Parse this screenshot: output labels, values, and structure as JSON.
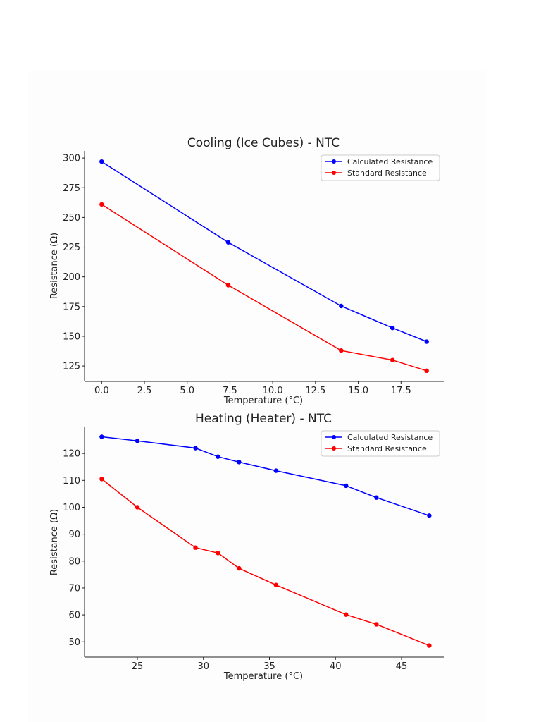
{
  "chart_data": [
    {
      "type": "line",
      "title": "Cooling (Ice Cubes) - NTC",
      "xlabel": "Temperature (°C)",
      "ylabel": "Resistance (Ω)",
      "xlim": [
        -1,
        20
      ],
      "ylim": [
        112,
        306
      ],
      "xticks": [
        0.0,
        2.5,
        5.0,
        7.5,
        10.0,
        12.5,
        15.0,
        17.5
      ],
      "xtick_labels": [
        "0.0",
        "2.5",
        "5.0",
        "7.5",
        "10.0",
        "12.5",
        "15.0",
        "17.5"
      ],
      "yticks": [
        125,
        150,
        175,
        200,
        225,
        250,
        275,
        300
      ],
      "ytick_labels": [
        "125",
        "150",
        "175",
        "200",
        "225",
        "250",
        "275",
        "300"
      ],
      "legend_position": "top-right",
      "grid": false,
      "x": [
        0.0,
        7.4,
        14.0,
        17.0,
        19.0
      ],
      "series": [
        {
          "name": "Calculated Resistance",
          "color": "#0000ff",
          "values": [
            297,
            229,
            175.5,
            157,
            145.5
          ]
        },
        {
          "name": "Standard Resistance",
          "color": "#ff0000",
          "values": [
            261,
            193,
            138,
            130,
            121
          ]
        }
      ]
    },
    {
      "type": "line",
      "title": "Heating (Heater) - NTC",
      "xlabel": "Temperature (°C)",
      "ylabel": "Resistance (Ω)",
      "xlim": [
        21,
        48.2
      ],
      "ylim": [
        44.3,
        130
      ],
      "xticks": [
        25,
        30,
        35,
        40,
        45
      ],
      "xtick_labels": [
        "25",
        "30",
        "35",
        "40",
        "45"
      ],
      "yticks": [
        50,
        60,
        70,
        80,
        90,
        100,
        110,
        120
      ],
      "ytick_labels": [
        "50",
        "60",
        "70",
        "80",
        "90",
        "100",
        "110",
        "120"
      ],
      "legend_position": "top-right",
      "grid": false,
      "x": [
        22.3,
        25.0,
        29.4,
        31.1,
        32.7,
        35.5,
        40.8,
        43.1,
        47.1
      ],
      "series": [
        {
          "name": "Calculated Resistance",
          "color": "#0000ff",
          "values": [
            126.2,
            124.7,
            122,
            118.8,
            116.8,
            113.6,
            108,
            103.6,
            96.9
          ]
        },
        {
          "name": "Standard Resistance",
          "color": "#ff0000",
          "values": [
            110.5,
            100,
            85,
            83,
            77.3,
            71.1,
            60.1,
            56.5,
            48.6
          ]
        }
      ]
    }
  ]
}
